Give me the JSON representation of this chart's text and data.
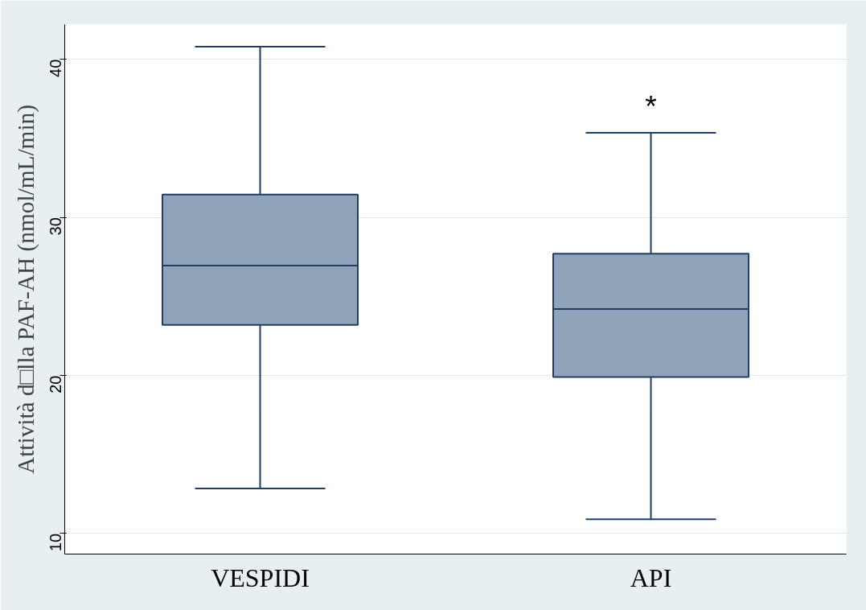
{
  "chart_data": {
    "type": "box",
    "ylabel": "Attività d□lla PAF-AH (nmol/mL/min)",
    "categories": [
      "VESPIDI",
      "API"
    ],
    "boxes": [
      {
        "low": 12.85,
        "q1": 23.2,
        "median": 26.95,
        "q3": 31.45,
        "high": 40.8
      },
      {
        "low": 10.9,
        "q1": 19.9,
        "median": 24.2,
        "q3": 27.7,
        "high": 35.35
      }
    ],
    "color": "#8fa4b8",
    "ylim": [
      8.7,
      42.2
    ],
    "yticks": [
      10,
      20,
      30,
      40
    ],
    "grid": "y",
    "annotations": [
      "*"
    ]
  }
}
